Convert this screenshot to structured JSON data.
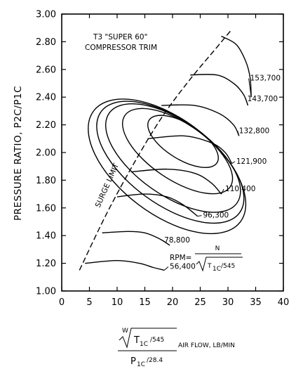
{
  "chart_data": {
    "type": "line",
    "annotations": {
      "trim_line1": "T3 \"SUPER 60\"",
      "trim_line2": "COMPRESSOR TRIM",
      "surge": "SURGE LIMIT"
    },
    "ylabel": "PRESSURE RATIO, P2C/P1C",
    "xlabel": {
      "prefix": "W",
      "numerator": "T",
      "numerator_sub": "1C",
      "numerator_tail": "/545",
      "after": "AIR FLOW, LB/MIN",
      "denominator": "P",
      "denominator_sub": "1C",
      "denominator_tail": "/28.4"
    },
    "rpm_formula": {
      "label": "RPM=",
      "numerator": "N",
      "denominator": "T",
      "denominator_sub": "1C",
      "denominator_tail": "/545"
    },
    "xlim": [
      0,
      40
    ],
    "ylim": [
      1.0,
      3.0
    ],
    "x_ticks": [
      0,
      5,
      10,
      15,
      20,
      25,
      30,
      35,
      40
    ],
    "y_ticks": [
      1.0,
      1.2,
      1.4,
      1.6,
      1.8,
      2.0,
      2.2,
      2.4,
      2.6,
      2.8,
      3.0
    ],
    "x_tick_labels": [
      "0",
      "5",
      "10",
      "15",
      "20",
      "25",
      "30",
      "35",
      "40"
    ],
    "y_tick_labels": [
      "1.00",
      "1.20",
      "1.40",
      "1.60",
      "1.80",
      "2.00",
      "2.20",
      "2.40",
      "2.60",
      "2.80",
      "3.00"
    ],
    "grid": false,
    "surge_limit": [
      [
        3.2,
        1.15
      ],
      [
        8,
        1.55
      ],
      [
        13,
        1.92
      ],
      [
        18,
        2.25
      ],
      [
        23,
        2.52
      ],
      [
        28,
        2.76
      ],
      [
        30.5,
        2.88
      ]
    ],
    "speed_lines": [
      {
        "rpm": "56,400",
        "label_at": [
          19.5,
          1.16
        ],
        "points": [
          [
            4.2,
            1.2
          ],
          [
            10,
            1.22
          ],
          [
            14,
            1.2
          ],
          [
            16.5,
            1.17
          ],
          [
            18.5,
            1.15
          ]
        ]
      },
      {
        "rpm": "78,800",
        "label_at": [
          18.5,
          1.35
        ],
        "points": [
          [
            7.3,
            1.42
          ],
          [
            12,
            1.43
          ],
          [
            15,
            1.42
          ],
          [
            17.5,
            1.38
          ],
          [
            19.5,
            1.33
          ]
        ]
      },
      {
        "rpm": "96,300",
        "label_at": [
          25.5,
          1.53
        ],
        "points": [
          [
            10,
            1.68
          ],
          [
            15,
            1.7
          ],
          [
            19,
            1.68
          ],
          [
            22,
            1.62
          ],
          [
            24.5,
            1.54
          ]
        ]
      },
      {
        "rpm": "110,400",
        "label_at": [
          29.5,
          1.72
        ],
        "points": [
          [
            12.5,
            1.86
          ],
          [
            19,
            1.88
          ],
          [
            24,
            1.85
          ],
          [
            27,
            1.78
          ],
          [
            28.8,
            1.7
          ]
        ]
      },
      {
        "rpm": "121,900",
        "label_at": [
          31.5,
          1.92
        ],
        "points": [
          [
            15.5,
            2.1
          ],
          [
            22,
            2.12
          ],
          [
            27,
            2.07
          ],
          [
            29.5,
            2.0
          ],
          [
            30.7,
            1.92
          ]
        ]
      },
      {
        "rpm": "132,800",
        "label_at": [
          32,
          2.14
        ],
        "points": [
          [
            18,
            2.34
          ],
          [
            24,
            2.34
          ],
          [
            28.5,
            2.28
          ],
          [
            31,
            2.2
          ],
          [
            32,
            2.12
          ]
        ]
      },
      {
        "rpm": "143,700",
        "label_at": [
          33.5,
          2.37
        ],
        "points": [
          [
            23.2,
            2.56
          ],
          [
            28,
            2.56
          ],
          [
            31,
            2.5
          ],
          [
            32.8,
            2.42
          ],
          [
            33.6,
            2.34
          ]
        ]
      },
      {
        "rpm": "153,700",
        "label_at": [
          34,
          2.52
        ],
        "points": [
          [
            28.8,
            2.84
          ],
          [
            31.5,
            2.78
          ],
          [
            33.2,
            2.66
          ],
          [
            34,
            2.54
          ],
          [
            34.2,
            2.4
          ]
        ]
      }
    ],
    "efficiency_islands": [
      {
        "cx": 21.9,
        "cy": 2.08,
        "rx": 3.2,
        "ry": 0.58,
        "rotate": -33
      },
      {
        "cx": 20.9,
        "cy": 2.01,
        "rx": 5.1,
        "ry": 0.92,
        "rotate": -31
      },
      {
        "cx": 20.1,
        "cy": 1.96,
        "rx": 6.7,
        "ry": 1.13,
        "rotate": -30
      },
      {
        "cx": 19.6,
        "cy": 1.93,
        "rx": 7.6,
        "ry": 1.24,
        "rotate": -29
      },
      {
        "cx": 19.0,
        "cy": 1.9,
        "rx": 8.6,
        "ry": 1.33,
        "rotate": -28
      }
    ]
  }
}
